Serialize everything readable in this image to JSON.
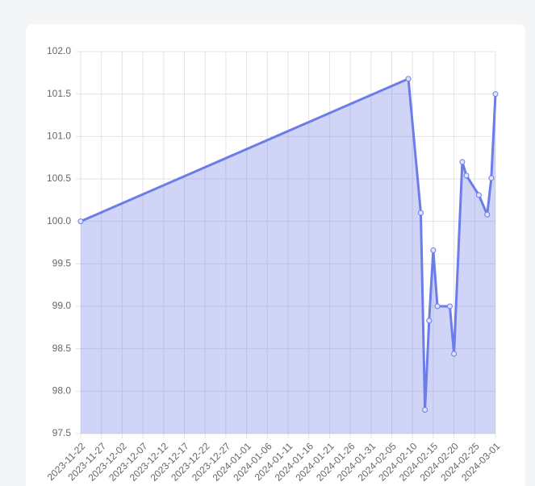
{
  "chart_data": {
    "type": "line",
    "x": [
      "2023-11-22",
      "2024-02-09",
      "2024-02-12",
      "2024-02-13",
      "2024-02-14",
      "2024-02-15",
      "2024-02-16",
      "2024-02-19",
      "2024-02-20",
      "2024-02-22",
      "2024-02-23",
      "2024-02-26",
      "2024-02-28",
      "2024-02-29",
      "2024-03-01"
    ],
    "series": [
      {
        "color": "#6c7ce8",
        "values": [
          100.0,
          101.68,
          100.1,
          97.78,
          98.83,
          99.66,
          99.0,
          99.0,
          98.44,
          100.7,
          100.54,
          100.31,
          100.08,
          100.51,
          101.5
        ]
      }
    ],
    "xlim": [
      "2023-11-22",
      "2024-03-01"
    ],
    "xticks": [
      "2023-11-22",
      "2023-11-27",
      "2023-12-02",
      "2023-12-07",
      "2023-12-12",
      "2023-12-17",
      "2023-12-22",
      "2023-12-27",
      "2024-01-01",
      "2024-01-06",
      "2024-01-11",
      "2024-01-16",
      "2024-01-21",
      "2024-01-26",
      "2024-01-31",
      "2024-02-05",
      "2024-02-10",
      "2024-02-15",
      "2024-02-20",
      "2024-02-25",
      "2024-03-01"
    ],
    "ylim": [
      97.5,
      102
    ],
    "yticks": [
      97.5,
      {
        "value": 98,
        "label": "98.0"
      },
      98.5,
      {
        "value": 99,
        "label": "99.0"
      },
      99.5,
      {
        "value": 100,
        "label": "100.0"
      },
      100.5,
      {
        "value": 101,
        "label": "101.0"
      },
      101.5,
      {
        "value": 102,
        "label": "102.0"
      }
    ],
    "grid": true,
    "fill": true
  }
}
